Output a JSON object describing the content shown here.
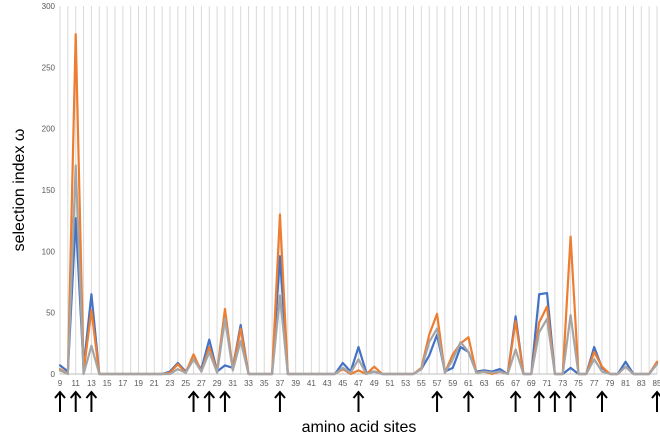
{
  "chart_data": {
    "type": "line",
    "xlabel": "amino acid sites",
    "ylabel": "selection index ω",
    "ylim": [
      0,
      300
    ],
    "yticks": [
      0,
      50,
      100,
      150,
      200,
      250,
      300
    ],
    "x": [
      9,
      10,
      11,
      12,
      13,
      14,
      15,
      16,
      17,
      18,
      19,
      20,
      21,
      22,
      23,
      24,
      25,
      26,
      27,
      28,
      29,
      30,
      31,
      32,
      33,
      34,
      35,
      36,
      37,
      38,
      39,
      40,
      41,
      42,
      43,
      44,
      45,
      46,
      47,
      48,
      49,
      50,
      51,
      52,
      53,
      54,
      55,
      56,
      57,
      58,
      59,
      60,
      61,
      62,
      63,
      64,
      65,
      66,
      67,
      68,
      69,
      70,
      71,
      72,
      73,
      74,
      75,
      76,
      77,
      78,
      79,
      80,
      81,
      82,
      83,
      84,
      85
    ],
    "x_tick_labels": [
      9,
      11,
      13,
      15,
      17,
      19,
      21,
      23,
      25,
      27,
      29,
      31,
      33,
      35,
      37,
      39,
      41,
      43,
      45,
      47,
      49,
      51,
      53,
      55,
      57,
      59,
      61,
      63,
      65,
      67,
      69,
      71,
      73,
      75,
      77,
      79,
      81,
      83,
      85
    ],
    "grid": "vertical",
    "legend": "none",
    "series": [
      {
        "color": "#4472c4",
        "values": [
          7,
          2,
          127,
          5,
          65,
          0,
          0,
          0,
          0,
          0,
          0,
          0,
          0,
          0,
          2,
          9,
          2,
          12,
          4,
          28,
          2,
          7,
          5,
          40,
          0,
          0,
          0,
          0,
          96,
          0,
          0,
          0,
          0,
          0,
          0,
          0,
          9,
          2,
          22,
          1,
          2,
          0,
          0,
          0,
          0,
          0,
          4,
          15,
          32,
          2,
          5,
          22,
          18,
          2,
          3,
          2,
          4,
          0,
          47,
          0,
          0,
          65,
          66,
          0,
          0,
          5,
          0,
          0,
          22,
          5,
          0,
          0,
          10,
          0,
          0,
          0,
          9
        ]
      },
      {
        "color": "#ed7d31",
        "values": [
          4,
          0,
          277,
          2,
          52,
          0,
          0,
          0,
          0,
          0,
          0,
          0,
          0,
          0,
          1,
          8,
          1,
          16,
          2,
          22,
          2,
          53,
          4,
          37,
          0,
          0,
          0,
          0,
          130,
          0,
          0,
          0,
          0,
          0,
          0,
          0,
          4,
          0,
          3,
          0,
          6,
          0,
          0,
          0,
          0,
          0,
          5,
          32,
          49,
          1,
          16,
          25,
          30,
          1,
          2,
          0,
          2,
          0,
          43,
          0,
          0,
          42,
          55,
          0,
          0,
          112,
          0,
          0,
          18,
          6,
          0,
          0,
          6,
          0,
          0,
          0,
          10
        ]
      },
      {
        "color": "#a5a5a5",
        "values": [
          3,
          0,
          170,
          0,
          23,
          0,
          0,
          0,
          0,
          0,
          0,
          0,
          0,
          0,
          0,
          4,
          1,
          12,
          2,
          18,
          1,
          45,
          3,
          27,
          0,
          0,
          0,
          0,
          64,
          0,
          0,
          0,
          0,
          0,
          0,
          0,
          5,
          1,
          12,
          0,
          2,
          0,
          0,
          0,
          0,
          0,
          4,
          26,
          37,
          1,
          12,
          26,
          18,
          1,
          2,
          1,
          2,
          0,
          20,
          0,
          0,
          34,
          45,
          0,
          0,
          48,
          0,
          0,
          12,
          2,
          0,
          0,
          6,
          0,
          0,
          0,
          8
        ]
      }
    ],
    "arrow_sites": [
      9,
      11,
      13,
      26,
      28,
      30,
      37,
      47,
      57,
      61,
      67,
      70,
      72,
      74,
      78,
      85
    ]
  }
}
